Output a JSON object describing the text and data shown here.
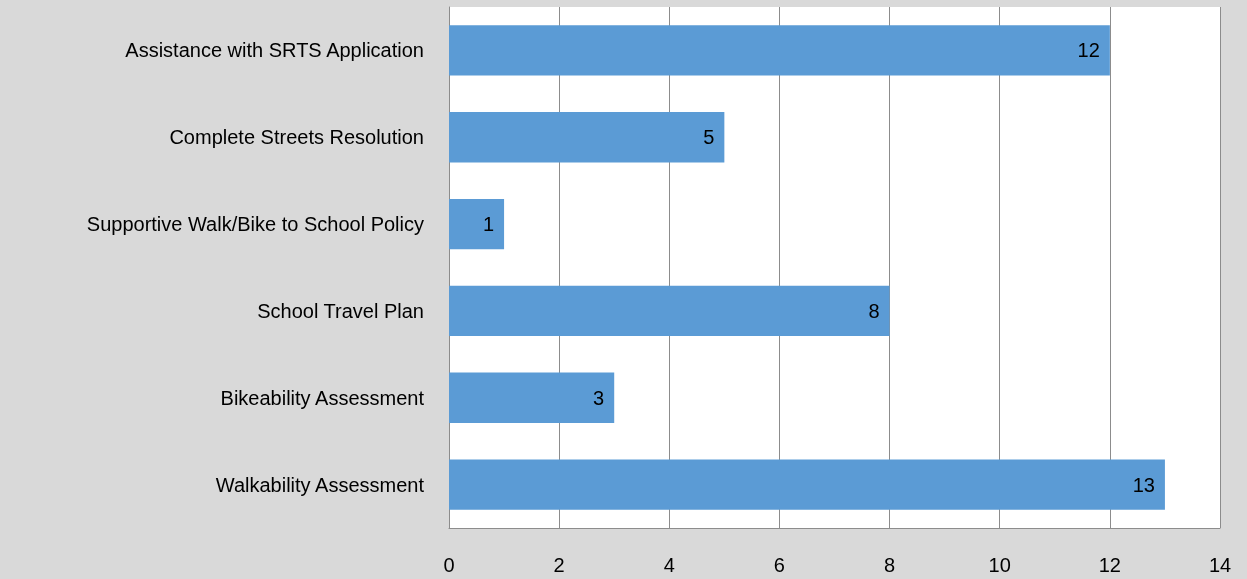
{
  "chart_data": {
    "type": "bar",
    "orientation": "horizontal",
    "categories": [
      "Assistance with SRTS Application",
      "Complete Streets Resolution",
      "Supportive Walk/Bike to School Policy",
      "School Travel Plan",
      "Bikeability Assessment",
      "Walkability Assessment"
    ],
    "values": [
      12,
      5,
      1,
      8,
      3,
      13
    ],
    "color": "#5b9bd5",
    "xlim": [
      0,
      14
    ],
    "xticks": [
      0,
      2,
      4,
      6,
      8,
      10,
      12,
      14
    ],
    "grid": "x",
    "data_labels": true
  }
}
